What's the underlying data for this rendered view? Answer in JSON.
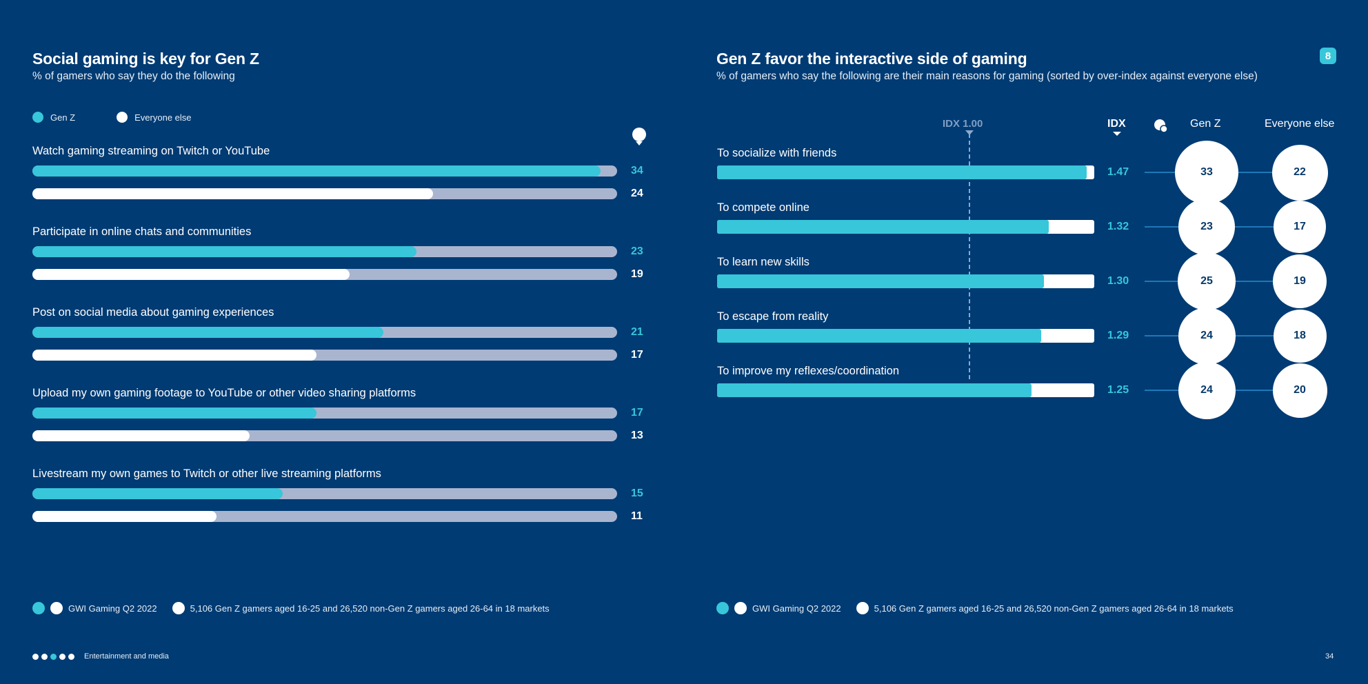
{
  "left": {
    "title": "Social gaming is key for Gen Z",
    "subtitle": "% of gamers who say they do the following",
    "legend": {
      "genz": "Gen Z",
      "everyone": "Everyone else"
    },
    "source": "GWI Gaming Q2 2022",
    "base": "5,106 Gen Z gamers aged 16-25 and 26,520 non-Gen Z gamers aged 26-64 in 18 markets"
  },
  "right": {
    "title": "Gen Z favor the interactive side of gaming",
    "subtitle": "% of gamers who say the following are their main reasons for gaming (sorted by over-index against everyone else)",
    "idx_ref_label": "IDX 1.00",
    "idx_header": "IDX",
    "col_genz": "Gen Z",
    "col_everyone": "Everyone else",
    "page_badge": "8",
    "source": "GWI Gaming Q2 2022",
    "base": "5,106 Gen Z gamers aged 16-25 and 26,520 non-Gen Z gamers aged 26-64 in 18 markets"
  },
  "footer": {
    "section": "Entertainment and media",
    "page_number": "34"
  },
  "colors": {
    "background": "#003b73",
    "cyan": "#38c6da",
    "track": "#a9b5cf",
    "white": "#ffffff"
  },
  "chart_data": [
    {
      "type": "bar",
      "title": "Social gaming is key for Gen Z",
      "subtitle": "% of gamers who say they do the following",
      "categories": [
        "Watch gaming streaming on Twitch or YouTube",
        "Participate in online chats and communities",
        "Post on social media about gaming experiences",
        "Upload my own gaming footage to YouTube or other video sharing platforms",
        "Livestream my own games to Twitch or other live streaming platforms"
      ],
      "series": [
        {
          "name": "Gen Z",
          "values": [
            34,
            23,
            21,
            17,
            15
          ]
        },
        {
          "name": "Everyone else",
          "values": [
            24,
            19,
            17,
            13,
            11
          ]
        }
      ],
      "xlim": [
        0,
        35
      ],
      "legend": "top-left"
    },
    {
      "type": "bar",
      "title": "Gen Z favor the interactive side of gaming",
      "subtitle": "% of gamers who say the following are their main reasons for gaming (sorted by over-index against everyone else)",
      "categories": [
        "To socialize with friends",
        "To compete online",
        "To learn new skills",
        "To escape from reality",
        "To improve my reflexes/coordination"
      ],
      "idx": [
        1.47,
        1.32,
        1.3,
        1.29,
        1.25
      ],
      "idx_reference": 1.0,
      "series": [
        {
          "name": "Gen Z",
          "values": [
            33,
            23,
            25,
            24,
            24
          ]
        },
        {
          "name": "Everyone else",
          "values": [
            22,
            17,
            19,
            18,
            20
          ]
        }
      ],
      "idx_lim": [
        0,
        1.5
      ]
    }
  ]
}
